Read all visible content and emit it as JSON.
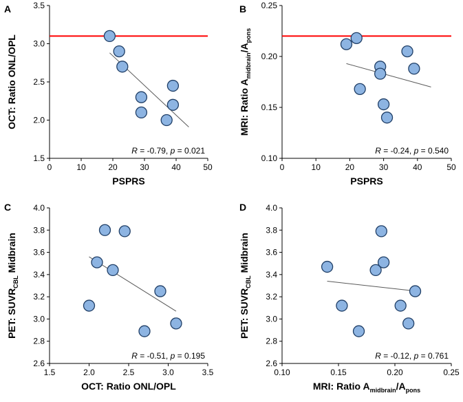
{
  "chart_data": [
    {
      "panel": "A",
      "type": "scatter",
      "xlabel": "PSPRS",
      "ylabel": "OCT:  Ratio ONL/OPL",
      "xlim": [
        0,
        50
      ],
      "ylim": [
        1.5,
        3.5
      ],
      "xticks": [
        "0",
        "10",
        "20",
        "30",
        "40",
        "50"
      ],
      "yticks": [
        "1.5",
        "2.0",
        "2.5",
        "3.0",
        "3.5"
      ],
      "x": [
        19,
        22,
        23,
        29,
        29,
        37,
        39,
        39
      ],
      "y": [
        3.1,
        2.9,
        2.7,
        2.3,
        2.1,
        2.0,
        2.2,
        2.45
      ],
      "reference_line": 3.1,
      "trend": {
        "x": [
          19,
          44
        ],
        "y": [
          2.88,
          1.91
        ]
      },
      "stat": {
        "R": "-0.79",
        "p": "0.021"
      }
    },
    {
      "panel": "B",
      "type": "scatter",
      "xlabel": "PSPRS",
      "ylabel": {
        "pre": "MRI:  Ratio A",
        "sub1": "midbrain",
        "mid": "/A",
        "sub2": "pons"
      },
      "xlim": [
        0,
        50
      ],
      "ylim": [
        0.1,
        0.25
      ],
      "xticks": [
        "0",
        "10",
        "20",
        "30",
        "40",
        "50"
      ],
      "yticks": [
        "0.10",
        "0.15",
        "0.20",
        "0.25"
      ],
      "x": [
        19,
        22,
        23,
        29,
        29,
        30,
        31,
        37,
        39
      ],
      "y": [
        0.212,
        0.218,
        0.168,
        0.19,
        0.183,
        0.153,
        0.14,
        0.205,
        0.188
      ],
      "reference_line": 0.22,
      "trend": {
        "x": [
          19,
          44
        ],
        "y": [
          0.193,
          0.17
        ]
      },
      "stat": {
        "R": "-0.24",
        "p": "0.540"
      }
    },
    {
      "panel": "C",
      "type": "scatter",
      "xlabel": "OCT: Ratio ONL/OPL",
      "ylabel": {
        "pre": "PET: SUVR",
        "sub": "CBL",
        "post": " Midbrain"
      },
      "xlim": [
        1.5,
        3.5
      ],
      "ylim": [
        2.6,
        4.0
      ],
      "xticks": [
        "1.5",
        "2.0",
        "2.5",
        "3.0",
        "3.5"
      ],
      "yticks": [
        "2.6",
        "2.8",
        "3.0",
        "3.2",
        "3.4",
        "3.6",
        "3.8",
        "4.0"
      ],
      "x": [
        2.0,
        2.1,
        2.2,
        2.3,
        2.45,
        2.7,
        2.9,
        3.1
      ],
      "y": [
        3.12,
        3.51,
        3.8,
        3.44,
        3.79,
        2.89,
        3.25,
        2.96
      ],
      "trend": {
        "x": [
          2.0,
          3.1
        ],
        "y": [
          3.56,
          3.07
        ]
      },
      "stat": {
        "R": "-0.51",
        "p": "0.195"
      }
    },
    {
      "panel": "D",
      "type": "scatter",
      "xlabel": {
        "pre": "MRI: Ratio A",
        "sub1": "midbrain",
        "mid": "/A",
        "sub2": "pons"
      },
      "ylabel": {
        "pre": "PET: SUVR",
        "sub": "CBL",
        "post": " Midbrain"
      },
      "xlim": [
        0.1,
        0.25
      ],
      "ylim": [
        2.6,
        4.0
      ],
      "xticks": [
        "0.10",
        "0.15",
        "0.20",
        "0.25"
      ],
      "yticks": [
        "2.6",
        "2.8",
        "3.0",
        "3.2",
        "3.4",
        "3.6",
        "3.8",
        "4.0"
      ],
      "x": [
        0.14,
        0.153,
        0.168,
        0.183,
        0.188,
        0.19,
        0.205,
        0.212,
        0.218
      ],
      "y": [
        3.47,
        3.12,
        2.89,
        3.44,
        3.79,
        3.51,
        3.12,
        2.96,
        3.25
      ],
      "trend": {
        "x": [
          0.14,
          0.22
        ],
        "y": [
          3.34,
          3.25
        ]
      },
      "stat": {
        "R": "-0.12",
        "p": "0.761"
      }
    }
  ],
  "colors": {
    "marker_fill": "#8db4e2",
    "marker_stroke": "#1f3e66",
    "reference_line": "#ff0000",
    "trend_line": "#595959",
    "axis": "#000000"
  }
}
